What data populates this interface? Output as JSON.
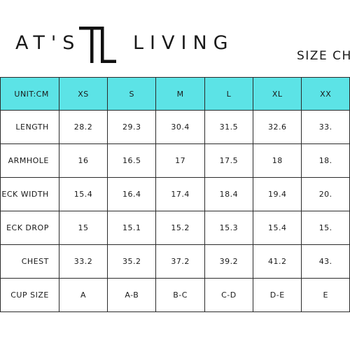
{
  "brand": {
    "left_text": "AT'S",
    "right_text": "LIVING",
    "logo_icon": "tl-monogram-icon"
  },
  "title": "SIZE CHA",
  "colors": {
    "header_bg": "#5ce3e6",
    "border": "#2b2b2b",
    "text": "#1a1a1a"
  },
  "table": {
    "unit_label": "UNIT:CM",
    "sizes": [
      "XS",
      "S",
      "M",
      "L",
      "XL",
      "XX"
    ],
    "rows": [
      {
        "label": "LENGTH",
        "values": [
          "28.2",
          "29.3",
          "30.4",
          "31.5",
          "32.6",
          "33."
        ]
      },
      {
        "label": "ARMHOLE",
        "values": [
          "16",
          "16.5",
          "17",
          "17.5",
          "18",
          "18."
        ]
      },
      {
        "label": "ECK WIDTH",
        "values": [
          "15.4",
          "16.4",
          "17.4",
          "18.4",
          "19.4",
          "20."
        ]
      },
      {
        "label": "ECK DROP",
        "values": [
          "15",
          "15.1",
          "15.2",
          "15.3",
          "15.4",
          "15."
        ]
      },
      {
        "label": "CHEST",
        "values": [
          "33.2",
          "35.2",
          "37.2",
          "39.2",
          "41.2",
          "43."
        ]
      },
      {
        "label": "CUP SIZE",
        "values": [
          "A",
          "A-B",
          "B-C",
          "C-D",
          "D-E",
          "E"
        ]
      }
    ]
  }
}
